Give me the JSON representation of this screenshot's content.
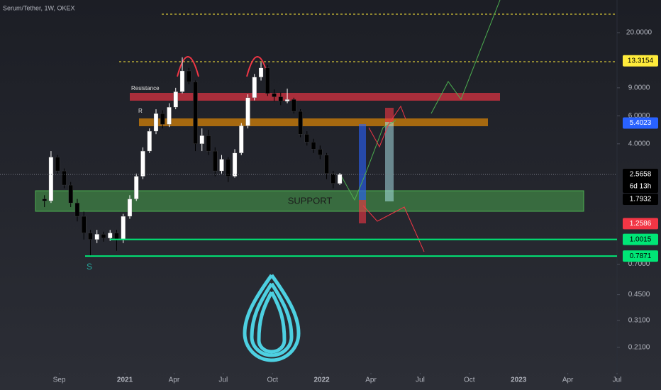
{
  "chart_data": {
    "type": "candlestick",
    "title": "Serum/Tether, 1W, OKEX",
    "log_scale": true,
    "up_color": "#ffffff",
    "down_color": "#000000",
    "x": [
      -4.9,
      -4.5,
      -4.1,
      -3.7,
      -3.3,
      -2.9,
      -2.5,
      -2.1,
      -1.7,
      -1.3,
      -0.9,
      -0.5,
      -0.1,
      0.3,
      0.7,
      1.1,
      1.5,
      1.9,
      2.3,
      2.7,
      3.1,
      3.5,
      3.9,
      4.3,
      4.7,
      5.1,
      5.5,
      5.9,
      6.3,
      6.7,
      7.1,
      7.5,
      7.9,
      8.3,
      8.7,
      9.1,
      9.5,
      9.9,
      10.3,
      10.7,
      11.1,
      11.5,
      11.9,
      12.3,
      12.7,
      13.1
    ],
    "open": [
      1.8,
      1.75,
      3.3,
      2.7,
      2.2,
      1.7,
      1.4,
      1.1,
      1.0,
      1.08,
      1.02,
      1.1,
      1.0,
      1.4,
      1.8,
      2.5,
      3.6,
      4.8,
      6.2,
      5.3,
      6.8,
      8.5,
      11.5,
      9.8,
      4.0,
      4.5,
      3.6,
      2.7,
      3.2,
      2.5,
      3.5,
      5.2,
      7.8,
      10.5,
      12.0,
      8.3,
      7.9,
      7.4,
      7.6,
      6.4,
      4.6,
      4.1,
      3.7,
      3.4,
      2.6,
      2.25
    ],
    "high": [
      1.9,
      3.6,
      3.4,
      2.8,
      2.3,
      1.8,
      1.5,
      1.15,
      1.15,
      1.12,
      1.15,
      1.15,
      1.45,
      1.9,
      2.6,
      3.8,
      5.0,
      6.6,
      6.5,
      7.2,
      9.0,
      14.0,
      12.0,
      10.0,
      5.0,
      4.9,
      3.8,
      3.4,
      3.3,
      3.7,
      5.4,
      8.2,
      11.0,
      13.0,
      12.5,
      8.8,
      8.4,
      8.9,
      7.8,
      6.6,
      4.8,
      4.3,
      3.9,
      3.5,
      2.7,
      2.62
    ],
    "low": [
      1.6,
      1.7,
      2.6,
      2.1,
      1.6,
      1.3,
      1.0,
      0.78,
      0.95,
      0.97,
      0.98,
      0.85,
      0.95,
      1.35,
      1.75,
      2.4,
      3.5,
      4.6,
      5.0,
      5.1,
      6.6,
      8.3,
      9.5,
      3.6,
      3.6,
      3.4,
      2.5,
      2.6,
      2.3,
      2.45,
      3.4,
      5.0,
      7.5,
      10.0,
      8.0,
      7.4,
      7.0,
      7.2,
      6.2,
      4.4,
      3.9,
      3.5,
      3.2,
      2.4,
      2.1,
      2.2
    ],
    "close": [
      1.75,
      3.3,
      2.7,
      2.2,
      1.7,
      1.4,
      1.1,
      1.0,
      1.08,
      1.02,
      1.1,
      1.0,
      1.4,
      1.8,
      2.5,
      3.6,
      4.8,
      6.2,
      5.3,
      6.8,
      8.5,
      11.5,
      9.8,
      4.0,
      4.5,
      3.6,
      2.7,
      3.2,
      2.5,
      3.5,
      5.2,
      7.8,
      10.5,
      12.0,
      8.3,
      7.9,
      7.4,
      7.6,
      6.4,
      4.6,
      4.1,
      3.7,
      3.4,
      2.6,
      2.25,
      2.57
    ],
    "xlim": [
      -7.61,
      30
    ],
    "xticks": [
      {
        "value": -4,
        "label": "Sep"
      },
      {
        "value": 0,
        "label": "2021"
      },
      {
        "value": 3,
        "label": "Apr"
      },
      {
        "value": 6,
        "label": "Jul"
      },
      {
        "value": 9,
        "label": "Oct"
      },
      {
        "value": 12,
        "label": "2022"
      },
      {
        "value": 15,
        "label": "Apr"
      },
      {
        "value": 18,
        "label": "Jul"
      },
      {
        "value": 21,
        "label": "Oct"
      },
      {
        "value": 24,
        "label": "2023"
      },
      {
        "value": 27,
        "label": "Apr"
      },
      {
        "value": 30,
        "label": "Jul"
      }
    ],
    "ylim": [
      0.154,
      32.1
    ],
    "yticks": [
      {
        "value": 20,
        "label": "20.0000"
      },
      {
        "value": 9,
        "label": "9.0000"
      },
      {
        "value": 6,
        "label": "6.0000"
      },
      {
        "value": 4,
        "label": "4.0000"
      },
      {
        "value": 0.7,
        "label": "0.7000"
      },
      {
        "value": 0.45,
        "label": "0.4500"
      },
      {
        "value": 0.31,
        "label": "0.3100"
      },
      {
        "value": 0.21,
        "label": "0.2100"
      }
    ],
    "price_labels": [
      {
        "value": 13.3154,
        "color": "#ffeb3b",
        "text_color": "#000000"
      },
      {
        "value": 5.4023,
        "color": "#2962ff",
        "text_color": "#ffffff"
      },
      {
        "value": 2.5658,
        "color": "#000000",
        "text_color": "#ffffff"
      },
      {
        "value": 1.7932,
        "color": "#000000",
        "text_color": "#ffffff"
      },
      {
        "value": 1.2586,
        "color": "#f23645",
        "text_color": "#ffffff"
      },
      {
        "value": 1.0015,
        "color": "#00e676",
        "text_color": "#000000"
      },
      {
        "value": 0.7871,
        "color": "#00e676",
        "text_color": "#000000"
      }
    ],
    "countdown": "6d 13h",
    "annotations": {
      "resistance": "Resistance",
      "r": "R",
      "support": "SUPPORT",
      "s": "S"
    }
  }
}
